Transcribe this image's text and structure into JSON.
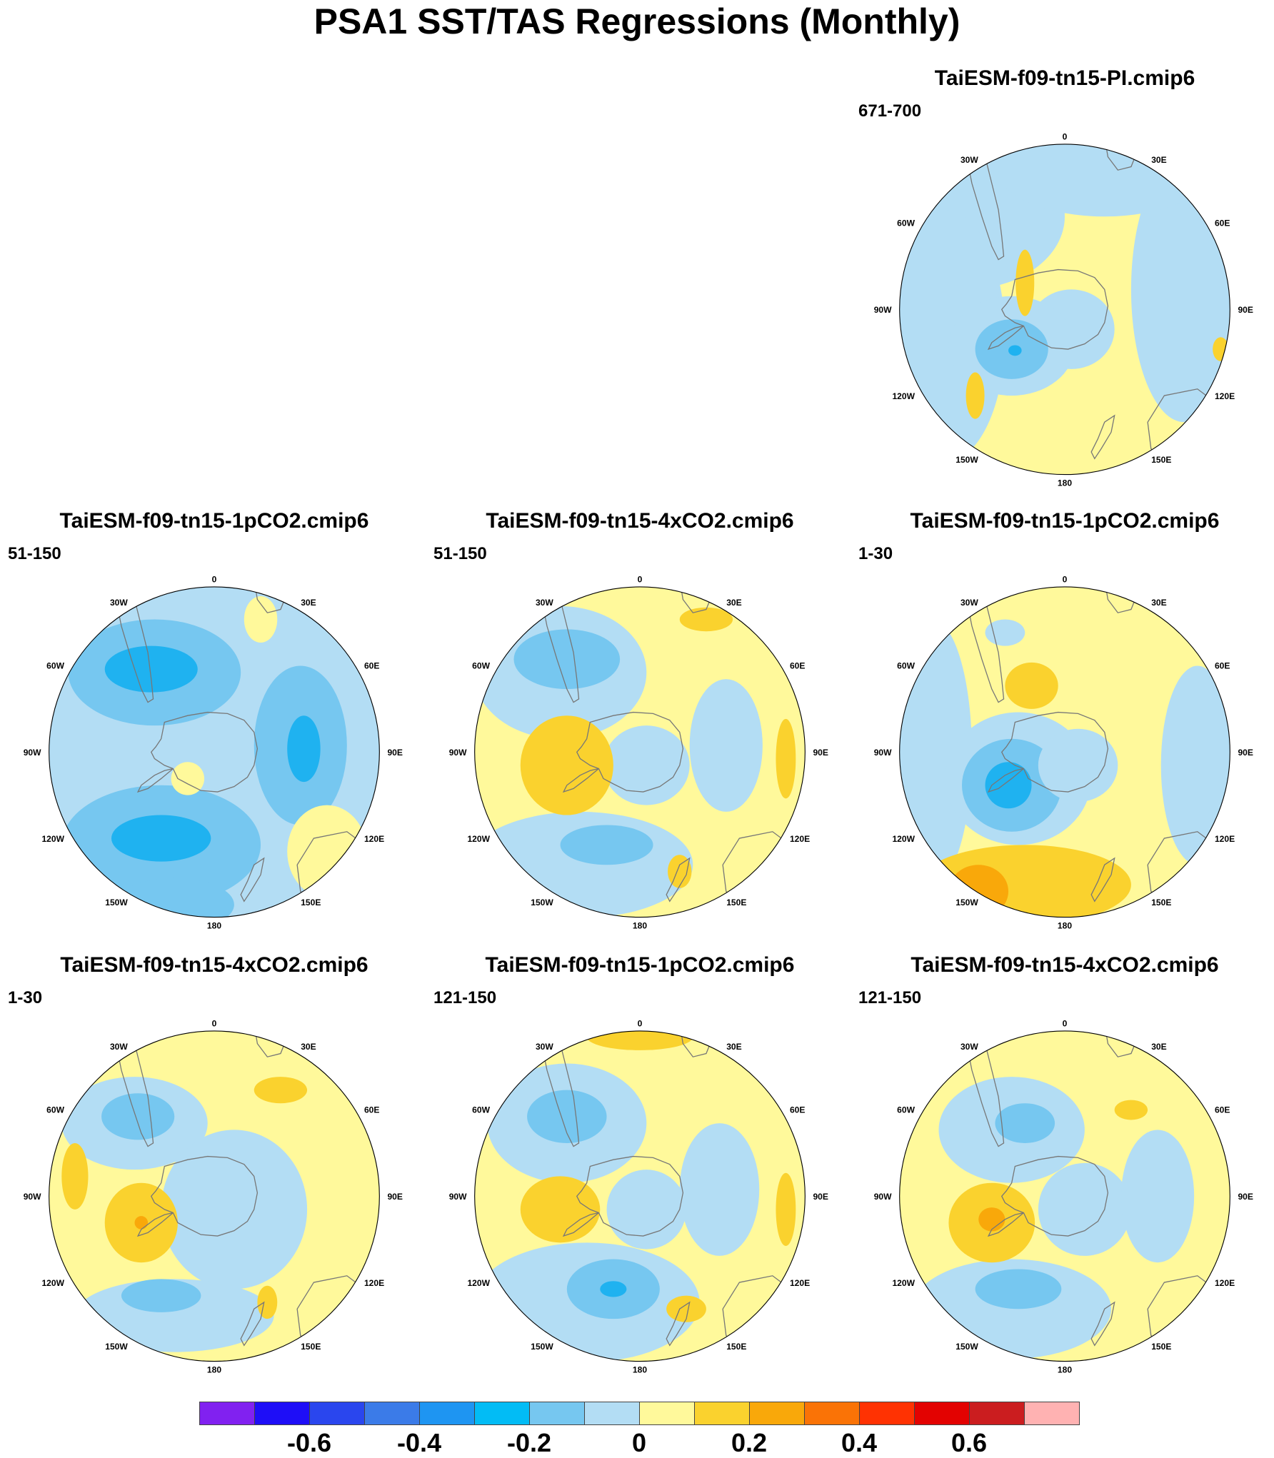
{
  "title": "PSA1 SST/TAS Regressions (Monthly)",
  "longitude_labels": [
    "0",
    "30E",
    "60E",
    "90E",
    "120E",
    "150E",
    "180",
    "150W",
    "120W",
    "90W",
    "60W",
    "30W"
  ],
  "panels": [
    {
      "id": "pi",
      "model": "TaiESM-f09-tn15-PI.cmip6",
      "period": "671-700",
      "background": "#fff99b",
      "blobs": [
        {
          "c": "#b3ddf4",
          "x": -150,
          "y": -140,
          "rx": 150,
          "ry": 110
        },
        {
          "c": "#b3ddf4",
          "x": -180,
          "y": 40,
          "rx": 90,
          "ry": 190
        },
        {
          "c": "#b3ddf4",
          "x": 180,
          "y": -30,
          "rx": 80,
          "ry": 200
        },
        {
          "c": "#b3ddf4",
          "x": 60,
          "y": -210,
          "rx": 160,
          "ry": 70
        },
        {
          "c": "#b3ddf4",
          "x": 10,
          "y": 30,
          "rx": 65,
          "ry": 60
        },
        {
          "c": "#b3ddf4",
          "x": -80,
          "y": 55,
          "rx": 95,
          "ry": 75
        },
        {
          "c": "#76c7f0",
          "x": -80,
          "y": 60,
          "rx": 55,
          "ry": 45
        },
        {
          "c": "#1fb2f0",
          "x": -75,
          "y": 62,
          "rx": 10,
          "ry": 8
        },
        {
          "c": "#fad22e",
          "x": -60,
          "y": -40,
          "rx": 14,
          "ry": 50
        },
        {
          "c": "#fad22e",
          "x": -135,
          "y": 130,
          "rx": 14,
          "ry": 35
        },
        {
          "c": "#fad22e",
          "x": 235,
          "y": 60,
          "rx": 12,
          "ry": 18
        }
      ]
    },
    {
      "id": "1pco2-51",
      "model": "TaiESM-f09-tn15-1pCO2.cmip6",
      "period": "51-150",
      "background": "#b3ddf4",
      "blobs": [
        {
          "c": "#76c7f0",
          "x": -90,
          "y": -120,
          "rx": 130,
          "ry": 80
        },
        {
          "c": "#1fb2f0",
          "x": -95,
          "y": -125,
          "rx": 70,
          "ry": 35
        },
        {
          "c": "#76c7f0",
          "x": 130,
          "y": -10,
          "rx": 70,
          "ry": 120
        },
        {
          "c": "#1fb2f0",
          "x": 135,
          "y": -5,
          "rx": 25,
          "ry": 50
        },
        {
          "c": "#76c7f0",
          "x": -80,
          "y": 140,
          "rx": 150,
          "ry": 90
        },
        {
          "c": "#1fb2f0",
          "x": -80,
          "y": 130,
          "rx": 75,
          "ry": 35
        },
        {
          "c": "#76c7f0",
          "x": -60,
          "y": 230,
          "rx": 90,
          "ry": 40
        },
        {
          "c": "#fff99b",
          "x": -40,
          "y": 40,
          "rx": 25,
          "ry": 25
        },
        {
          "c": "#fff99b",
          "x": 170,
          "y": 150,
          "rx": 60,
          "ry": 70
        },
        {
          "c": "#fff99b",
          "x": 70,
          "y": -200,
          "rx": 25,
          "ry": 35
        }
      ]
    },
    {
      "id": "4xco2-51",
      "model": "TaiESM-f09-tn15-4xCO2.cmip6",
      "period": "51-150",
      "background": "#fff99b",
      "blobs": [
        {
          "c": "#b3ddf4",
          "x": -120,
          "y": -120,
          "rx": 130,
          "ry": 100
        },
        {
          "c": "#76c7f0",
          "x": -110,
          "y": -140,
          "rx": 80,
          "ry": 45
        },
        {
          "c": "#b3ddf4",
          "x": 130,
          "y": -10,
          "rx": 55,
          "ry": 100
        },
        {
          "c": "#b3ddf4",
          "x": 10,
          "y": 20,
          "rx": 65,
          "ry": 60
        },
        {
          "c": "#b3ddf4",
          "x": -90,
          "y": 170,
          "rx": 170,
          "ry": 80
        },
        {
          "c": "#76c7f0",
          "x": -50,
          "y": 140,
          "rx": 70,
          "ry": 30
        },
        {
          "c": "#fad22e",
          "x": -110,
          "y": 20,
          "rx": 70,
          "ry": 75
        },
        {
          "c": "#fad22e",
          "x": 220,
          "y": 10,
          "rx": 15,
          "ry": 60
        },
        {
          "c": "#fad22e",
          "x": 60,
          "y": 180,
          "rx": 18,
          "ry": 25
        },
        {
          "c": "#fad22e",
          "x": 100,
          "y": -200,
          "rx": 40,
          "ry": 18
        }
      ]
    },
    {
      "id": "1pco2-1",
      "model": "TaiESM-f09-tn15-1pCO2.cmip6",
      "period": "1-30",
      "background": "#fff99b",
      "blobs": [
        {
          "c": "#b3ddf4",
          "x": -200,
          "y": 0,
          "rx": 60,
          "ry": 200
        },
        {
          "c": "#b3ddf4",
          "x": -70,
          "y": 40,
          "rx": 110,
          "ry": 100
        },
        {
          "c": "#76c7f0",
          "x": -80,
          "y": 50,
          "rx": 75,
          "ry": 70
        },
        {
          "c": "#1fb2f0",
          "x": -85,
          "y": 50,
          "rx": 35,
          "ry": 35
        },
        {
          "c": "#b3ddf4",
          "x": 200,
          "y": 20,
          "rx": 55,
          "ry": 150
        },
        {
          "c": "#b3ddf4",
          "x": 20,
          "y": 20,
          "rx": 60,
          "ry": 55
        },
        {
          "c": "#fad22e",
          "x": -60,
          "y": 200,
          "rx": 160,
          "ry": 60
        },
        {
          "c": "#f9a80a",
          "x": -130,
          "y": 210,
          "rx": 45,
          "ry": 40
        },
        {
          "c": "#fad22e",
          "x": -50,
          "y": -100,
          "rx": 40,
          "ry": 35
        },
        {
          "c": "#b3ddf4",
          "x": -90,
          "y": -180,
          "rx": 30,
          "ry": 20
        }
      ]
    },
    {
      "id": "4xco2-1",
      "model": "TaiESM-f09-tn15-4xCO2.cmip6",
      "period": "1-30",
      "background": "#fff99b",
      "blobs": [
        {
          "c": "#b3ddf4",
          "x": -120,
          "y": -110,
          "rx": 110,
          "ry": 70
        },
        {
          "c": "#76c7f0",
          "x": -115,
          "y": -120,
          "rx": 55,
          "ry": 35
        },
        {
          "c": "#b3ddf4",
          "x": 30,
          "y": 20,
          "rx": 110,
          "ry": 120
        },
        {
          "c": "#b3ddf4",
          "x": -60,
          "y": 180,
          "rx": 150,
          "ry": 55
        },
        {
          "c": "#76c7f0",
          "x": -80,
          "y": 150,
          "rx": 60,
          "ry": 25
        },
        {
          "c": "#fad22e",
          "x": -110,
          "y": 40,
          "rx": 55,
          "ry": 60
        },
        {
          "c": "#f9a80a",
          "x": -110,
          "y": 40,
          "rx": 10,
          "ry": 10
        },
        {
          "c": "#fad22e",
          "x": -210,
          "y": -30,
          "rx": 20,
          "ry": 50
        },
        {
          "c": "#fad22e",
          "x": 100,
          "y": -160,
          "rx": 40,
          "ry": 20
        },
        {
          "c": "#fad22e",
          "x": 80,
          "y": 160,
          "rx": 15,
          "ry": 25
        }
      ]
    },
    {
      "id": "1pco2-121",
      "model": "TaiESM-f09-tn15-1pCO2.cmip6",
      "period": "121-150",
      "background": "#fff99b",
      "blobs": [
        {
          "c": "#b3ddf4",
          "x": -110,
          "y": -110,
          "rx": 120,
          "ry": 90
        },
        {
          "c": "#76c7f0",
          "x": -110,
          "y": -120,
          "rx": 60,
          "ry": 40
        },
        {
          "c": "#b3ddf4",
          "x": 120,
          "y": -10,
          "rx": 60,
          "ry": 100
        },
        {
          "c": "#b3ddf4",
          "x": 10,
          "y": 20,
          "rx": 60,
          "ry": 60
        },
        {
          "c": "#b3ddf4",
          "x": -80,
          "y": 160,
          "rx": 170,
          "ry": 90
        },
        {
          "c": "#76c7f0",
          "x": -40,
          "y": 140,
          "rx": 70,
          "ry": 45
        },
        {
          "c": "#1fb2f0",
          "x": -40,
          "y": 140,
          "rx": 20,
          "ry": 12
        },
        {
          "c": "#fad22e",
          "x": -120,
          "y": 20,
          "rx": 60,
          "ry": 50
        },
        {
          "c": "#fad22e",
          "x": 220,
          "y": 20,
          "rx": 15,
          "ry": 55
        },
        {
          "c": "#fad22e",
          "x": 0,
          "y": -240,
          "rx": 80,
          "ry": 20
        },
        {
          "c": "#fad22e",
          "x": 70,
          "y": 170,
          "rx": 30,
          "ry": 20
        }
      ]
    },
    {
      "id": "4xco2-121",
      "model": "TaiESM-f09-tn15-4xCO2.cmip6",
      "period": "121-150",
      "background": "#fff99b",
      "blobs": [
        {
          "c": "#b3ddf4",
          "x": -80,
          "y": -100,
          "rx": 110,
          "ry": 80
        },
        {
          "c": "#76c7f0",
          "x": -60,
          "y": -110,
          "rx": 45,
          "ry": 30
        },
        {
          "c": "#b3ddf4",
          "x": 30,
          "y": 20,
          "rx": 70,
          "ry": 70
        },
        {
          "c": "#b3ddf4",
          "x": 140,
          "y": 0,
          "rx": 55,
          "ry": 100
        },
        {
          "c": "#b3ddf4",
          "x": -80,
          "y": 170,
          "rx": 150,
          "ry": 75
        },
        {
          "c": "#76c7f0",
          "x": -70,
          "y": 140,
          "rx": 65,
          "ry": 30
        },
        {
          "c": "#fad22e",
          "x": -110,
          "y": 40,
          "rx": 65,
          "ry": 60
        },
        {
          "c": "#f9a80a",
          "x": -110,
          "y": 35,
          "rx": 20,
          "ry": 18
        },
        {
          "c": "#fad22e",
          "x": 100,
          "y": -130,
          "rx": 25,
          "ry": 15
        }
      ]
    }
  ],
  "colorbar": {
    "colors": [
      "#8121f0",
      "#1e0ef7",
      "#2a46ee",
      "#3b7be8",
      "#1e95f2",
      "#02bcf5",
      "#76c7f0",
      "#b3ddf4",
      "#fff99b",
      "#fad22e",
      "#f9a80a",
      "#fa7306",
      "#ff3202",
      "#e30201",
      "#cb1d1f",
      "#ffb2b2"
    ],
    "labels": [
      "-0.6",
      "-0.4",
      "-0.2",
      "0",
      "0.2",
      "0.4",
      "0.6"
    ]
  }
}
